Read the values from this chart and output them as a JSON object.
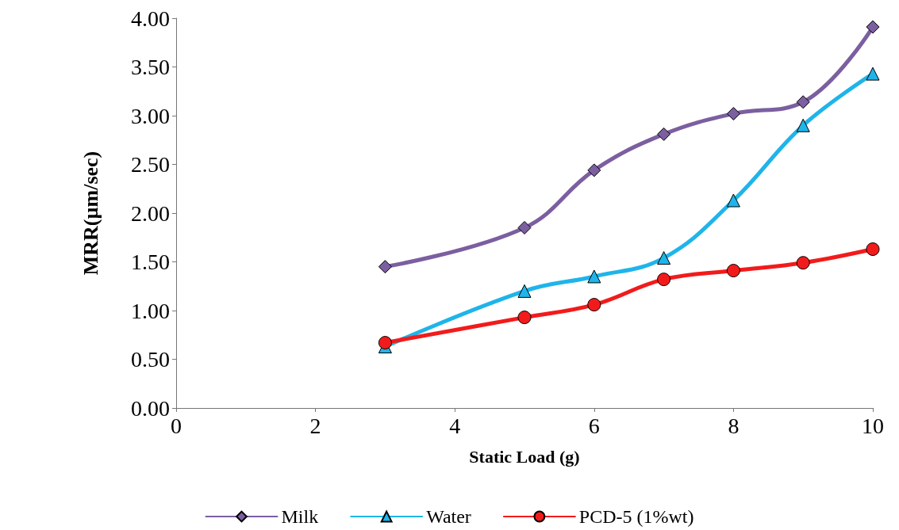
{
  "chart_data": {
    "type": "line",
    "xlabel": "Static Load (g)",
    "ylabel": "MRR(µm/sec)",
    "x": [
      3,
      5,
      6,
      7,
      8,
      9,
      10
    ],
    "series": [
      {
        "name": "Milk",
        "color": "#7b5fa0",
        "marker": "diamond",
        "values": [
          1.45,
          1.85,
          2.44,
          2.81,
          3.02,
          3.14,
          3.91
        ]
      },
      {
        "name": "Water",
        "color": "#1fb4ea",
        "marker": "triangle",
        "values": [
          0.63,
          1.2,
          1.35,
          1.54,
          2.13,
          2.9,
          3.43
        ]
      },
      {
        "name": "PCD-5 (1%wt)",
        "color": "#f21b1b",
        "marker": "circle",
        "values": [
          0.67,
          0.93,
          1.06,
          1.32,
          1.41,
          1.49,
          1.63
        ]
      }
    ],
    "xlim": [
      0,
      10
    ],
    "xticks": [
      0,
      2,
      4,
      6,
      8,
      10
    ],
    "ylim": [
      0,
      4
    ],
    "yticks": [
      {
        "value": 0,
        "label": "0.00"
      },
      {
        "value": 0.5,
        "label": "0.50"
      },
      {
        "value": 1,
        "label": "1.00"
      },
      {
        "value": 1.5,
        "label": "1.50"
      },
      {
        "value": 2,
        "label": "2.00"
      },
      {
        "value": 2.5,
        "label": "2.50"
      },
      {
        "value": 3,
        "label": "3.00"
      },
      {
        "value": 3.5,
        "label": "3.50"
      },
      {
        "value": 4,
        "label": "4.00"
      }
    ],
    "grid": false,
    "legend": "bottom"
  }
}
